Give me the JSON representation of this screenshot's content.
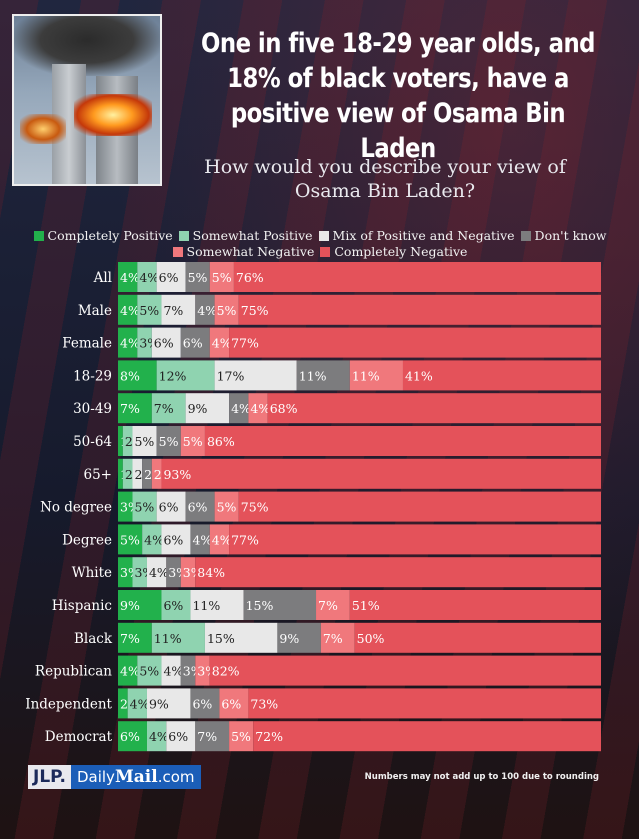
{
  "headline": "One in five 18-29 year olds, and\n18% of black voters, have a\npositive view of Osama Bin Laden",
  "footer": {
    "jlp": "JLP.",
    "brand_a": "Daily",
    "brand_b": "Mail",
    "brand_c": ".com",
    "note": "Numbers may not add up to 100 due to rounding"
  },
  "chart_data": {
    "type": "bar",
    "orientation": "horizontal",
    "stacked": true,
    "title": "How would you describe your view of\nOsama Bin Laden?",
    "legend_placement": "top",
    "categories": [
      "All",
      "Male",
      "Female",
      "18-29",
      "30-49",
      "50-64",
      "65+",
      "No degree",
      "Degree",
      "White",
      "Hispanic",
      "Black",
      "Republican",
      "Independent",
      "Democrat"
    ],
    "series": [
      {
        "name": "Completely Positive",
        "color": "#22b14c",
        "values": [
          4,
          4,
          4,
          8,
          7,
          1,
          1,
          3,
          5,
          3,
          9,
          7,
          4,
          2,
          6
        ]
      },
      {
        "name": "Somewhat Positive",
        "color": "#8fd3b0",
        "values": [
          4,
          5,
          3,
          12,
          7,
          2,
          2,
          5,
          4,
          3,
          6,
          11,
          5,
          4,
          4
        ]
      },
      {
        "name": "Mix of Positive and Negative",
        "color": "#e8e8e8",
        "values": [
          6,
          7,
          6,
          17,
          9,
          5,
          2,
          6,
          6,
          4,
          11,
          15,
          4,
          9,
          6
        ]
      },
      {
        "name": "Don't know",
        "color": "#7c7c7e",
        "values": [
          5,
          4,
          6,
          11,
          4,
          5,
          2,
          6,
          4,
          3,
          15,
          9,
          3,
          6,
          7
        ]
      },
      {
        "name": "Somewhat Negative",
        "color": "#f0787c",
        "values": [
          5,
          5,
          4,
          11,
          4,
          5,
          2,
          5,
          4,
          3,
          7,
          7,
          3,
          6,
          5
        ]
      },
      {
        "name": "Completely Negative",
        "color": "#e4525a",
        "values": [
          76,
          75,
          77,
          41,
          68,
          86,
          93,
          75,
          77,
          84,
          51,
          50,
          82,
          73,
          72
        ]
      }
    ],
    "xlim": [
      0,
      100
    ]
  }
}
